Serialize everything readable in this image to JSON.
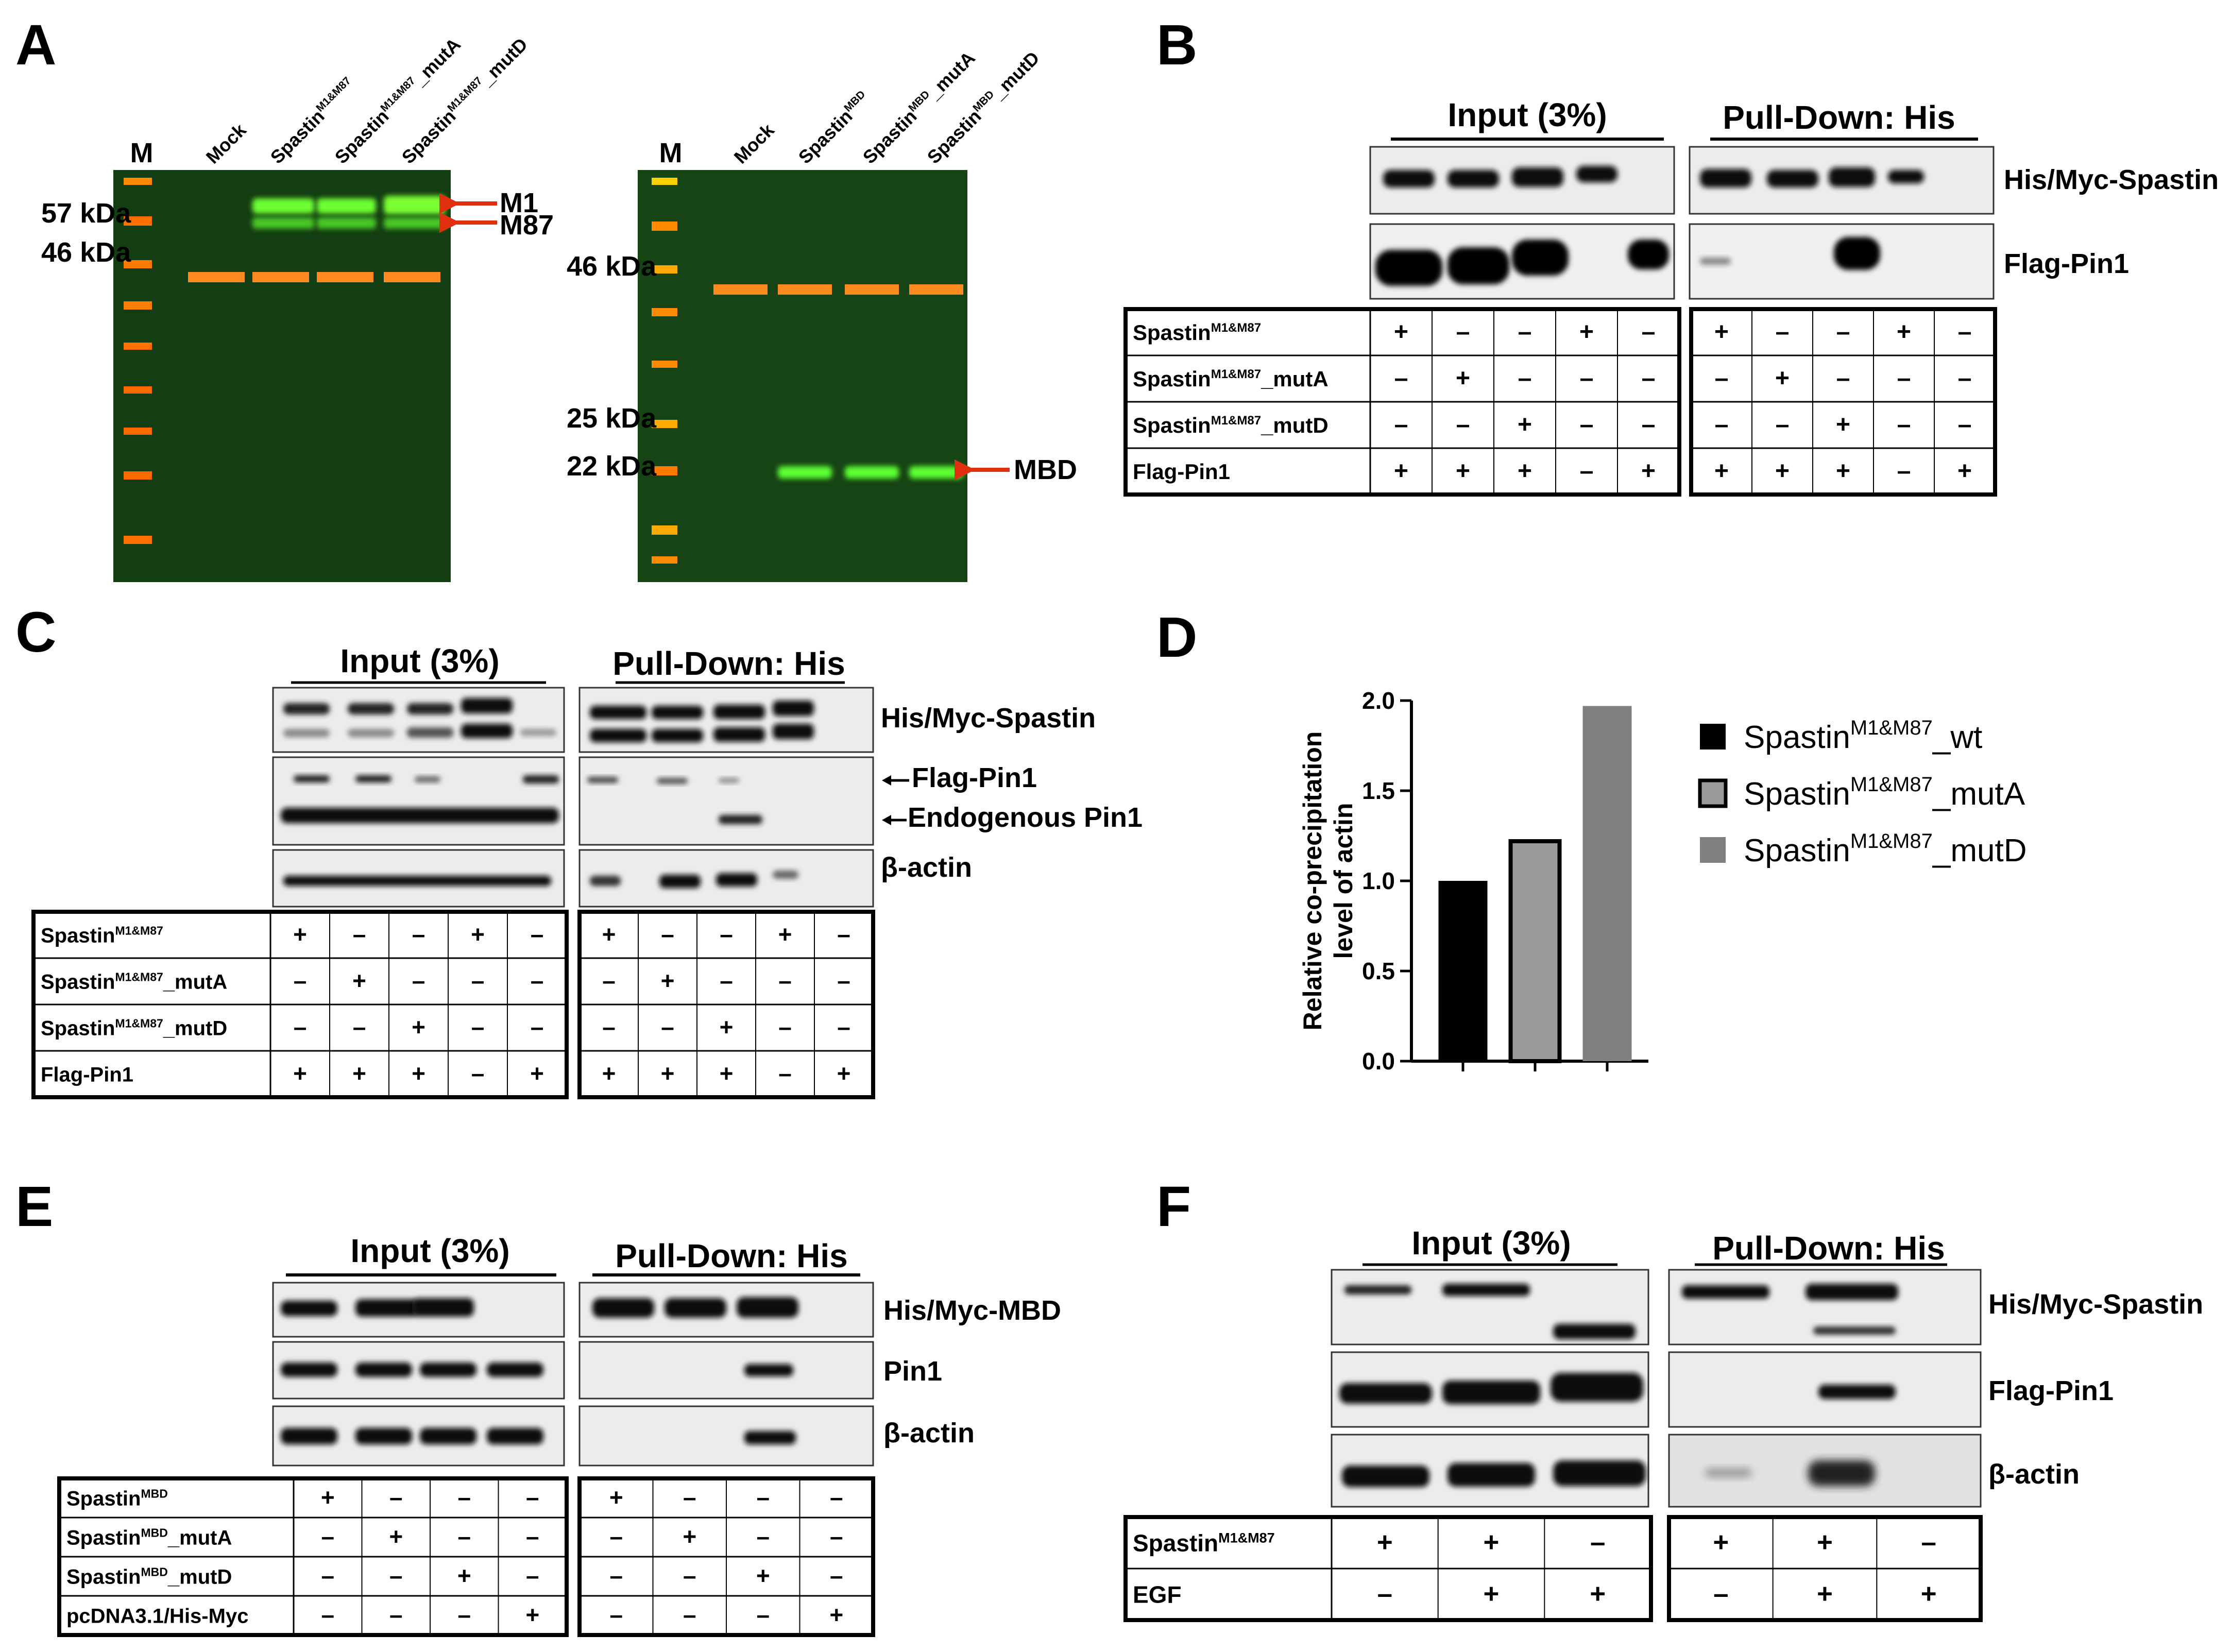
{
  "panels": {
    "a": "A",
    "b": "B",
    "c": "C",
    "d": "D",
    "e": "E",
    "f": "F"
  },
  "panel_a": {
    "gel1": {
      "lanes": [
        "M",
        "Mock",
        "Spastin",
        "Spastin",
        "Spastin"
      ],
      "lane_sup": [
        "",
        "",
        "M1&M87",
        "M1&M87",
        "M1&M87"
      ],
      "lane_suffix": [
        "",
        "",
        "",
        "_mutA",
        "_mutD"
      ],
      "mw": [
        "57 kDa",
        "46 kDa"
      ],
      "arrows": [
        "M1",
        "M87"
      ]
    },
    "gel2": {
      "lanes": [
        "M",
        "Mock",
        "Spastin",
        "Spastin",
        "Spastin"
      ],
      "lane_sup": [
        "",
        "",
        "MBD",
        "MBD",
        "MBD"
      ],
      "lane_suffix": [
        "",
        "",
        "",
        "_mutA",
        "_mutD"
      ],
      "mw": [
        "46 kDa",
        "25 kDa",
        "22 kDa"
      ],
      "arrows": [
        "MBD"
      ]
    }
  },
  "panel_b": {
    "headers": [
      "Input (3%)",
      "Pull-Down: His"
    ],
    "blots": [
      "His/Myc-Spastin",
      "Flag-Pin1"
    ],
    "rows": [
      {
        "name": "Spastin",
        "sup": "M1&M87",
        "suffix": "",
        "input": [
          "+",
          "–",
          "–",
          "+",
          "–"
        ],
        "pd": [
          "+",
          "–",
          "–",
          "+",
          "–"
        ]
      },
      {
        "name": "Spastin",
        "sup": "M1&M87",
        "suffix": "_mutA",
        "input": [
          "–",
          "+",
          "–",
          "–",
          "–"
        ],
        "pd": [
          "–",
          "+",
          "–",
          "–",
          "–"
        ]
      },
      {
        "name": "Spastin",
        "sup": "M1&M87",
        "suffix": "_mutD",
        "input": [
          "–",
          "–",
          "+",
          "–",
          "–"
        ],
        "pd": [
          "–",
          "–",
          "+",
          "–",
          "–"
        ]
      },
      {
        "name": "Flag-Pin1",
        "sup": "",
        "suffix": "",
        "input": [
          "+",
          "+",
          "+",
          "–",
          "+"
        ],
        "pd": [
          "+",
          "+",
          "+",
          "–",
          "+"
        ]
      }
    ]
  },
  "panel_c": {
    "headers": [
      "Input (3%)",
      "Pull-Down: His"
    ],
    "blots": [
      "His/Myc-Spastin",
      "Flag-Pin1",
      "Endogenous Pin1",
      "β-actin"
    ],
    "rows": [
      {
        "name": "Spastin",
        "sup": "M1&M87",
        "suffix": "",
        "input": [
          "+",
          "–",
          "–",
          "+",
          "–"
        ],
        "pd": [
          "+",
          "–",
          "–",
          "+",
          "–"
        ]
      },
      {
        "name": "Spastin",
        "sup": "M1&M87",
        "suffix": "_mutA",
        "input": [
          "–",
          "+",
          "–",
          "–",
          "–"
        ],
        "pd": [
          "–",
          "+",
          "–",
          "–",
          "–"
        ]
      },
      {
        "name": "Spastin",
        "sup": "M1&M87",
        "suffix": "_mutD",
        "input": [
          "–",
          "–",
          "+",
          "–",
          "–"
        ],
        "pd": [
          "–",
          "–",
          "+",
          "–",
          "–"
        ]
      },
      {
        "name": "Flag-Pin1",
        "sup": "",
        "suffix": "",
        "input": [
          "+",
          "+",
          "+",
          "–",
          "+"
        ],
        "pd": [
          "+",
          "+",
          "+",
          "–",
          "+"
        ]
      }
    ]
  },
  "panel_e": {
    "headers": [
      "Input (3%)",
      "Pull-Down: His"
    ],
    "blots": [
      "His/Myc-MBD",
      "Pin1",
      "β-actin"
    ],
    "rows": [
      {
        "name": "Spastin",
        "sup": "MBD",
        "suffix": "",
        "input": [
          "+",
          "–",
          "–",
          "–"
        ],
        "pd": [
          "+",
          "–",
          "–",
          "–"
        ]
      },
      {
        "name": "Spastin",
        "sup": "MBD",
        "suffix": "_mutA",
        "input": [
          "–",
          "+",
          "–",
          "–"
        ],
        "pd": [
          "–",
          "+",
          "–",
          "–"
        ]
      },
      {
        "name": "Spastin",
        "sup": "MBD",
        "suffix": "_mutD",
        "input": [
          "–",
          "–",
          "+",
          "–"
        ],
        "pd": [
          "–",
          "–",
          "+",
          "–"
        ]
      },
      {
        "name": "pcDNA3.1/His-Myc",
        "sup": "",
        "suffix": "",
        "input": [
          "–",
          "–",
          "–",
          "+"
        ],
        "pd": [
          "–",
          "–",
          "–",
          "+"
        ]
      }
    ]
  },
  "panel_f": {
    "headers": [
      "Input (3%)",
      "Pull-Down: His"
    ],
    "blots": [
      "His/Myc-Spastin",
      "Flag-Pin1",
      "β-actin"
    ],
    "rows": [
      {
        "name": "Spastin",
        "sup": "M1&M87",
        "suffix": "",
        "input": [
          "+",
          "+",
          "–"
        ],
        "pd": [
          "+",
          "+",
          "–"
        ]
      },
      {
        "name": "EGF",
        "sup": "",
        "suffix": "",
        "input": [
          "–",
          "+",
          "+"
        ],
        "pd": [
          "–",
          "+",
          "+"
        ]
      }
    ]
  },
  "chart_data": {
    "type": "bar",
    "categories": [
      "Spastin_wt",
      "Spastin_mutA",
      "Spastin_mutD"
    ],
    "values": [
      1.0,
      1.22,
      1.97
    ],
    "ylabel_line1": "Relative co-precipitation",
    "ylabel_line2": "level of actin",
    "ylim": [
      0,
      2.0
    ],
    "yticks": [
      "0.0",
      "0.5",
      "1.0",
      "1.5",
      "2.0"
    ],
    "legend": [
      {
        "name": "Spastin",
        "sup": "M1&M87",
        "suffix": "_wt"
      },
      {
        "name": "Spastin",
        "sup": "M1&M87",
        "suffix": "_mutA"
      },
      {
        "name": "Spastin",
        "sup": "M1&M87",
        "suffix": "_mutD"
      }
    ],
    "colors": [
      "#000000",
      "#9a9a9a",
      "#808080"
    ],
    "grid": false,
    "legend_position": "right"
  }
}
